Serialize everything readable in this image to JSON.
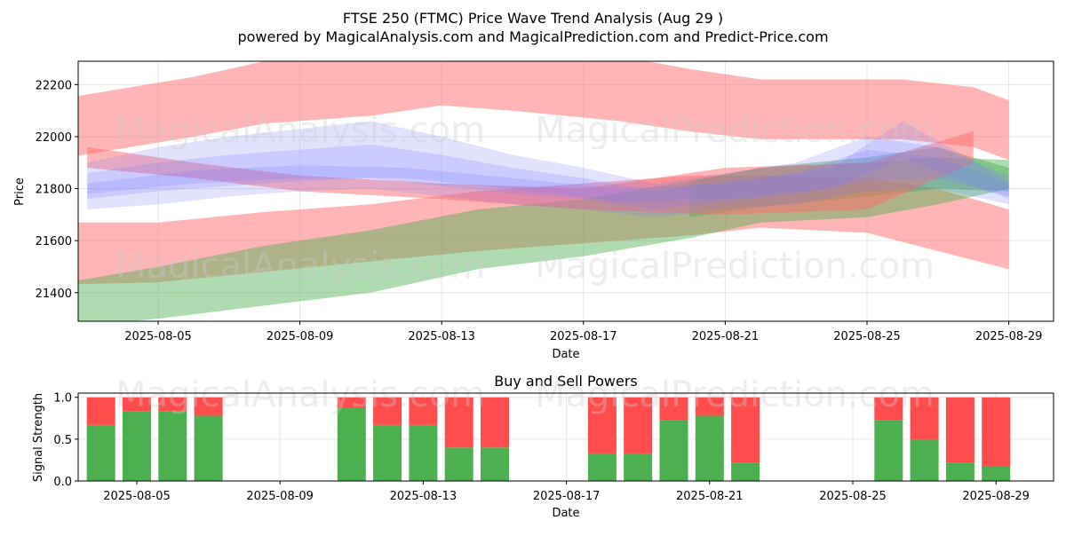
{
  "title": "FTSE 250 (FTMC) Price Wave Trend Analysis (Aug 29 )",
  "subtitle": "powered by MagicalAnalysis.com and MagicalPrediction.com and Predict-Price.com",
  "watermarks": [
    "MagicalAnalysis.com",
    "MagicalPrediction.com"
  ],
  "colors": {
    "red_band": "#ff6b6b",
    "green_band": "#4caf50",
    "blue_band": "#7b7bff",
    "buy": "#4caf50",
    "sell": "#ff4c4c"
  },
  "chart_data": [
    {
      "type": "area",
      "title": "",
      "xlabel": "Date",
      "ylabel": "Price",
      "x_ticks": [
        "2025-08-05",
        "2025-08-09",
        "2025-08-13",
        "2025-08-17",
        "2025-08-21",
        "2025-08-25",
        "2025-08-29"
      ],
      "y_ticks": [
        21400,
        21600,
        21800,
        22000,
        22200
      ],
      "xlim": [
        "2025-08-02",
        "2025-08-29"
      ],
      "ylim": [
        21290,
        22290
      ],
      "bands": [
        {
          "color": "red",
          "x": [
            "2025-08-02",
            "2025-08-06",
            "2025-08-08",
            "2025-08-11",
            "2025-08-13",
            "2025-08-15",
            "2025-08-18",
            "2025-08-20",
            "2025-08-22",
            "2025-08-26",
            "2025-08-28",
            "2025-08-29"
          ],
          "upper": [
            22140,
            22230,
            22290,
            22310,
            22320,
            22330,
            22310,
            22260,
            22220,
            22220,
            22190,
            22140
          ],
          "lower": [
            21910,
            22000,
            22050,
            22080,
            22120,
            22100,
            22060,
            22020,
            21990,
            21990,
            21960,
            21910
          ]
        },
        {
          "color": "red",
          "x": [
            "2025-08-02",
            "2025-08-05",
            "2025-08-08",
            "2025-08-11",
            "2025-08-14",
            "2025-08-17",
            "2025-08-20",
            "2025-08-22",
            "2025-08-25",
            "2025-08-27",
            "2025-08-29"
          ],
          "upper": [
            21670,
            21670,
            21710,
            21740,
            21790,
            21820,
            21850,
            21850,
            21840,
            21800,
            21720
          ],
          "lower": [
            21430,
            21440,
            21480,
            21520,
            21560,
            21590,
            21620,
            21650,
            21630,
            21560,
            21490
          ]
        },
        {
          "color": "green",
          "x": [
            "2025-08-02",
            "2025-08-05",
            "2025-08-08",
            "2025-08-11",
            "2025-08-14",
            "2025-08-17",
            "2025-08-20",
            "2025-08-22",
            "2025-08-25",
            "2025-08-27",
            "2025-08-29"
          ],
          "upper": [
            21430,
            21500,
            21580,
            21640,
            21720,
            21760,
            21830,
            21880,
            21900,
            21920,
            21910
          ],
          "lower": [
            21260,
            21300,
            21350,
            21400,
            21490,
            21540,
            21610,
            21670,
            21690,
            21740,
            21800
          ]
        },
        {
          "color": "green",
          "x": [
            "2025-08-20",
            "2025-08-22",
            "2025-08-25",
            "2025-08-27",
            "2025-08-29"
          ],
          "upper": [
            21830,
            21880,
            21920,
            21960,
            21880
          ],
          "lower": [
            21690,
            21730,
            21770,
            21800,
            21790
          ]
        },
        {
          "color": "red",
          "x": [
            "2025-08-03",
            "2025-08-06",
            "2025-08-09",
            "2025-08-13",
            "2025-08-17",
            "2025-08-21",
            "2025-08-25",
            "2025-08-28"
          ],
          "upper": [
            21960,
            21900,
            21850,
            21820,
            21800,
            21880,
            21900,
            22020
          ],
          "lower": [
            21880,
            21840,
            21790,
            21760,
            21720,
            21700,
            21720,
            21900
          ]
        },
        {
          "color": "blue",
          "x": [
            "2025-08-03",
            "2025-08-05",
            "2025-08-07",
            "2025-08-09",
            "2025-08-11",
            "2025-08-13",
            "2025-08-15",
            "2025-08-17",
            "2025-08-19",
            "2025-08-21",
            "2025-08-23",
            "2025-08-25",
            "2025-08-27",
            "2025-08-29"
          ],
          "upper": [
            21900,
            21960,
            22000,
            22030,
            22060,
            22000,
            21930,
            21880,
            21820,
            21860,
            21900,
            22000,
            21960,
            21850
          ],
          "lower": [
            21720,
            21740,
            21770,
            21790,
            21800,
            21770,
            21740,
            21720,
            21690,
            21720,
            21740,
            21790,
            21800,
            21740
          ]
        },
        {
          "color": "blue",
          "x": [
            "2025-08-03",
            "2025-08-05",
            "2025-08-07",
            "2025-08-09",
            "2025-08-11",
            "2025-08-13",
            "2025-08-15",
            "2025-08-17",
            "2025-08-19",
            "2025-08-21",
            "2025-08-23",
            "2025-08-25",
            "2025-08-27",
            "2025-08-29"
          ],
          "upper": [
            21860,
            21900,
            21930,
            21950,
            21970,
            21930,
            21880,
            21840,
            21790,
            21830,
            21860,
            21950,
            21920,
            21820
          ],
          "lower": [
            21760,
            21790,
            21810,
            21830,
            21840,
            21810,
            21780,
            21760,
            21720,
            21750,
            21780,
            21830,
            21840,
            21770
          ]
        },
        {
          "color": "blue",
          "x": [
            "2025-08-03",
            "2025-08-06",
            "2025-08-09",
            "2025-08-12",
            "2025-08-15",
            "2025-08-18",
            "2025-08-21",
            "2025-08-24",
            "2025-08-26",
            "2025-08-29"
          ],
          "upper": [
            21820,
            21870,
            21890,
            21880,
            21840,
            21800,
            21820,
            21880,
            22060,
            21830
          ],
          "lower": [
            21780,
            21820,
            21840,
            21840,
            21800,
            21750,
            21760,
            21800,
            21920,
            21760
          ]
        }
      ]
    },
    {
      "type": "bar",
      "title": "Buy and Sell Powers",
      "xlabel": "Date",
      "ylabel": "Signal Strength",
      "x_ticks": [
        "2025-08-05",
        "2025-08-09",
        "2025-08-13",
        "2025-08-17",
        "2025-08-21",
        "2025-08-25",
        "2025-08-29"
      ],
      "y_ticks": [
        "0.0",
        "0.5",
        "1.0"
      ],
      "ylim": [
        0,
        1.05
      ],
      "categories": [
        "2025-08-04",
        "2025-08-05",
        "2025-08-06",
        "2025-08-07",
        "2025-08-11",
        "2025-08-12",
        "2025-08-13",
        "2025-08-14",
        "2025-08-15",
        "2025-08-18",
        "2025-08-19",
        "2025-08-20",
        "2025-08-21",
        "2025-08-22",
        "2025-08-26",
        "2025-08-27",
        "2025-08-28",
        "2025-08-29"
      ],
      "series": [
        {
          "name": "Buy",
          "values": [
            0.67,
            0.83,
            0.83,
            0.78,
            0.88,
            0.67,
            0.67,
            0.4,
            0.4,
            0.33,
            0.33,
            0.73,
            0.78,
            0.22,
            0.73,
            0.5,
            0.22,
            0.17
          ]
        },
        {
          "name": "Sell",
          "values": [
            0.33,
            0.17,
            0.17,
            0.22,
            0.12,
            0.33,
            0.33,
            0.6,
            0.6,
            0.67,
            0.67,
            0.27,
            0.22,
            0.78,
            0.27,
            0.5,
            0.78,
            0.83
          ]
        }
      ]
    }
  ]
}
